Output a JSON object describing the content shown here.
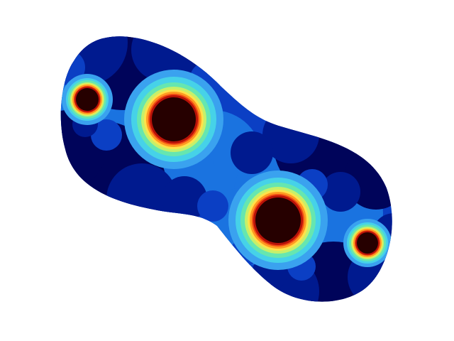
{
  "figure": {
    "background": "#ffffff",
    "colormap": "jet"
  },
  "palette": {
    "navy": "#00045a",
    "deep_blue": "#001a8f",
    "blue": "#0b3fc4",
    "mid_blue": "#1a73e0",
    "light_blue": "#3aa2ef",
    "cyan": "#46d2e8",
    "aqua_green": "#66e6b0",
    "yellow_green": "#c6f06a",
    "yellow": "#ffe24a",
    "orange": "#ff9a22",
    "red_orange": "#f04a14",
    "red": "#b81208",
    "dark_red": "#260000"
  }
}
